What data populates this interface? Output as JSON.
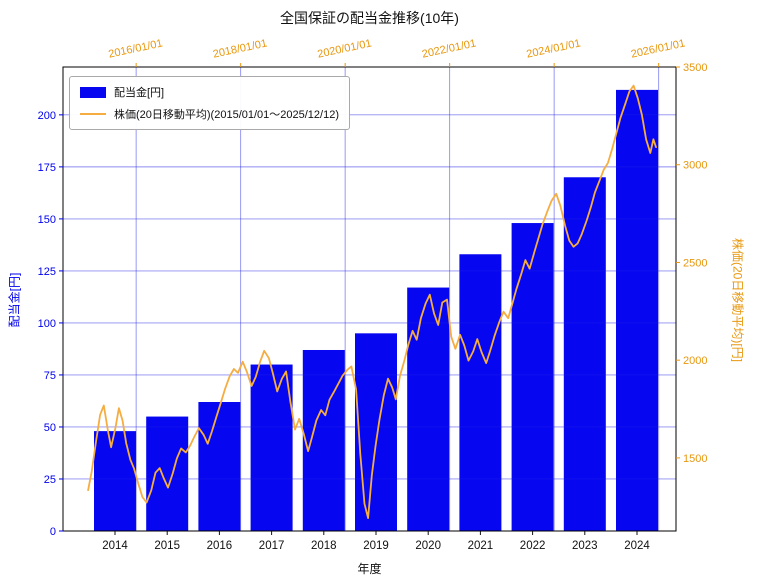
{
  "chart_data": {
    "type": "bar+line",
    "title": "全国保証の配当金推移(10年)",
    "xlabel": "年度",
    "ylabel_left": "配当金[円]",
    "ylabel_right": "株価(20日移動平均)[円]",
    "legend": [
      "配当金[円]",
      "株価(20日移動平均)(2015/01/01～2025/12/12)"
    ],
    "colors": {
      "bar": "#0606f0",
      "line": "#f5ad42",
      "left_axis_text": "#0000ee",
      "right_axis_text": "#e8980f",
      "bottom_axis_text": "#111111",
      "grid": "rgba(30,30,230,0.5)",
      "spine": "#000000"
    },
    "bar_series": {
      "name": "配当金[円]",
      "categories": [
        2014,
        2015,
        2016,
        2017,
        2018,
        2019,
        2020,
        2021,
        2022,
        2023,
        2024
      ],
      "values": [
        48,
        55,
        62,
        80,
        87,
        95,
        117,
        133,
        148,
        170,
        212
      ]
    },
    "line_series": {
      "name": "株価(20日移動平均)",
      "date_range": "2015/01/01～2025/12/12",
      "points": [
        [
          2015.08,
          1335
        ],
        [
          2015.15,
          1430
        ],
        [
          2015.23,
          1580
        ],
        [
          2015.31,
          1720
        ],
        [
          2015.38,
          1768
        ],
        [
          2015.46,
          1640
        ],
        [
          2015.52,
          1555
        ],
        [
          2015.6,
          1650
        ],
        [
          2015.67,
          1755
        ],
        [
          2015.74,
          1690
        ],
        [
          2015.81,
          1575
        ],
        [
          2015.89,
          1490
        ],
        [
          2015.96,
          1445
        ],
        [
          2016.04,
          1370
        ],
        [
          2016.12,
          1300
        ],
        [
          2016.2,
          1272
        ],
        [
          2016.29,
          1335
        ],
        [
          2016.37,
          1425
        ],
        [
          2016.45,
          1448
        ],
        [
          2016.53,
          1395
        ],
        [
          2016.61,
          1348
        ],
        [
          2016.7,
          1420
        ],
        [
          2016.78,
          1498
        ],
        [
          2016.86,
          1548
        ],
        [
          2016.95,
          1528
        ],
        [
          2017.03,
          1562
        ],
        [
          2017.12,
          1612
        ],
        [
          2017.2,
          1652
        ],
        [
          2017.29,
          1618
        ],
        [
          2017.37,
          1572
        ],
        [
          2017.45,
          1635
        ],
        [
          2017.53,
          1705
        ],
        [
          2017.62,
          1782
        ],
        [
          2017.7,
          1852
        ],
        [
          2017.79,
          1918
        ],
        [
          2017.87,
          1955
        ],
        [
          2017.95,
          1935
        ],
        [
          2018.04,
          1992
        ],
        [
          2018.12,
          1940
        ],
        [
          2018.21,
          1868
        ],
        [
          2018.29,
          1915
        ],
        [
          2018.37,
          1990
        ],
        [
          2018.45,
          2048
        ],
        [
          2018.54,
          2010
        ],
        [
          2018.62,
          1930
        ],
        [
          2018.7,
          1840
        ],
        [
          2018.79,
          1905
        ],
        [
          2018.87,
          1942
        ],
        [
          2018.95,
          1790
        ],
        [
          2019.04,
          1645
        ],
        [
          2019.12,
          1700
        ],
        [
          2019.21,
          1620
        ],
        [
          2019.29,
          1535
        ],
        [
          2019.37,
          1610
        ],
        [
          2019.45,
          1692
        ],
        [
          2019.54,
          1745
        ],
        [
          2019.62,
          1718
        ],
        [
          2019.7,
          1798
        ],
        [
          2019.79,
          1840
        ],
        [
          2019.87,
          1880
        ],
        [
          2019.95,
          1920
        ],
        [
          2020.04,
          1950
        ],
        [
          2020.12,
          1968
        ],
        [
          2020.21,
          1850
        ],
        [
          2020.29,
          1520
        ],
        [
          2020.37,
          1265
        ],
        [
          2020.44,
          1192
        ],
        [
          2020.51,
          1410
        ],
        [
          2020.58,
          1560
        ],
        [
          2020.66,
          1700
        ],
        [
          2020.74,
          1820
        ],
        [
          2020.82,
          1905
        ],
        [
          2020.9,
          1860
        ],
        [
          2020.97,
          1800
        ],
        [
          2021.05,
          1920
        ],
        [
          2021.13,
          1995
        ],
        [
          2021.21,
          2080
        ],
        [
          2021.29,
          2150
        ],
        [
          2021.37,
          2105
        ],
        [
          2021.45,
          2215
        ],
        [
          2021.54,
          2290
        ],
        [
          2021.62,
          2335
        ],
        [
          2021.7,
          2240
        ],
        [
          2021.78,
          2180
        ],
        [
          2021.86,
          2295
        ],
        [
          2021.95,
          2310
        ],
        [
          2022.03,
          2120
        ],
        [
          2022.11,
          2058
        ],
        [
          2022.2,
          2130
        ],
        [
          2022.28,
          2075
        ],
        [
          2022.36,
          1998
        ],
        [
          2022.45,
          2045
        ],
        [
          2022.53,
          2108
        ],
        [
          2022.61,
          2042
        ],
        [
          2022.7,
          1985
        ],
        [
          2022.78,
          2052
        ],
        [
          2022.86,
          2125
        ],
        [
          2022.95,
          2195
        ],
        [
          2023.03,
          2248
        ],
        [
          2023.12,
          2215
        ],
        [
          2023.2,
          2290
        ],
        [
          2023.28,
          2365
        ],
        [
          2023.37,
          2440
        ],
        [
          2023.45,
          2512
        ],
        [
          2023.53,
          2468
        ],
        [
          2023.62,
          2552
        ],
        [
          2023.7,
          2625
        ],
        [
          2023.78,
          2698
        ],
        [
          2023.87,
          2762
        ],
        [
          2023.95,
          2815
        ],
        [
          2024.04,
          2852
        ],
        [
          2024.12,
          2790
        ],
        [
          2024.21,
          2688
        ],
        [
          2024.29,
          2612
        ],
        [
          2024.37,
          2580
        ],
        [
          2024.45,
          2598
        ],
        [
          2024.53,
          2645
        ],
        [
          2024.62,
          2712
        ],
        [
          2024.7,
          2780
        ],
        [
          2024.78,
          2858
        ],
        [
          2024.87,
          2920
        ],
        [
          2024.95,
          2975
        ],
        [
          2025.03,
          3010
        ],
        [
          2025.11,
          3080
        ],
        [
          2025.19,
          3160
        ],
        [
          2025.27,
          3240
        ],
        [
          2025.36,
          3310
        ],
        [
          2025.44,
          3375
        ],
        [
          2025.52,
          3405
        ],
        [
          2025.6,
          3340
        ],
        [
          2025.68,
          3255
        ],
        [
          2025.76,
          3130
        ],
        [
          2025.84,
          3060
        ],
        [
          2025.9,
          3130
        ],
        [
          2025.95,
          3090
        ]
      ]
    },
    "axes": {
      "left": {
        "ticks": [
          0,
          25,
          50,
          75,
          100,
          125,
          150,
          175,
          200
        ],
        "lim": [
          0,
          223
        ]
      },
      "right": {
        "ticks": [
          1500,
          2000,
          2500,
          3000,
          3500
        ],
        "lim": [
          1126,
          3500
        ]
      },
      "bottom": {
        "ticks": [
          2014,
          2015,
          2016,
          2017,
          2018,
          2019,
          2020,
          2021,
          2022,
          2023,
          2024
        ]
      },
      "top": {
        "tick_years": [
          2016,
          2018,
          2020,
          2022,
          2024,
          2026
        ],
        "tick_labels": [
          "2016/01/01",
          "2018/01/01",
          "2020/01/01",
          "2022/01/01",
          "2024/01/01",
          "2026/01/01"
        ],
        "rotation_deg": -12
      }
    },
    "grid": {
      "horizontal": true,
      "vertical": true
    }
  }
}
